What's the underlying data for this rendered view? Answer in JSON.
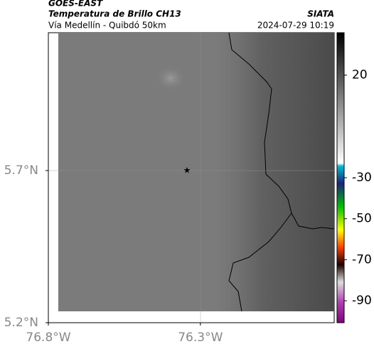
{
  "header": {
    "source": "GOES-EAST",
    "title": "Temperatura de Brillo CH13",
    "brand": "SIATA",
    "route": "Vía Medellín - Quibdó 50km",
    "timestamp": "2024-07-29 10:19"
  },
  "map": {
    "xlim": [
      -76.8,
      -75.86
    ],
    "ylim": [
      5.2,
      6.153
    ],
    "xticks": [
      {
        "value": -76.8,
        "label": "76.8°W"
      },
      {
        "value": -76.3,
        "label": "76.3°W"
      }
    ],
    "yticks": [
      {
        "value": 5.2,
        "label": "5.2°N"
      },
      {
        "value": 5.7,
        "label": "5.7°N"
      }
    ]
  },
  "colorbar": {
    "lim": [
      40,
      -100
    ],
    "ticks": [
      20,
      -30,
      -50,
      -70,
      -90
    ]
  }
}
